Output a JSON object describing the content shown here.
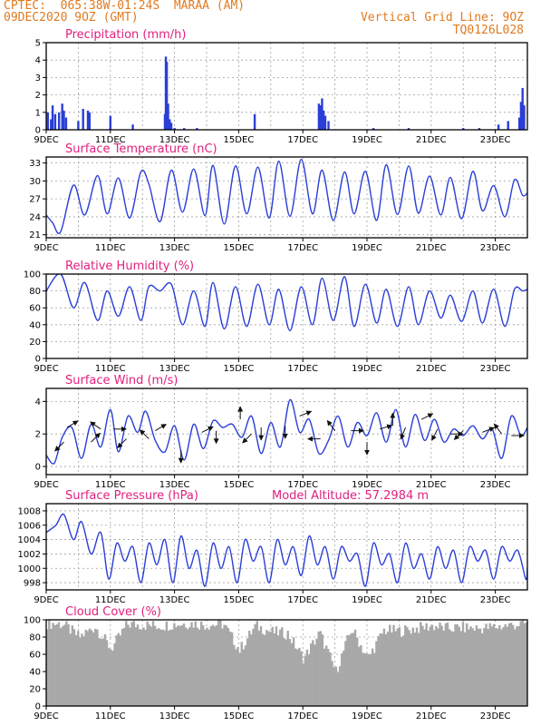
{
  "header": {
    "source": "CPTEC:  065:38W-01:24S  MARAA (AM)",
    "run": "09DEC2020 9OZ (GMT)",
    "grid_line": "Vertical Grid Line: 9OZ",
    "code": "TQ0126L028"
  },
  "colors": {
    "series": "#2b3fd6",
    "title": "#e0207e",
    "cloud": "#a8a8a8",
    "axis": "#000000",
    "grid": "#a0a0a0",
    "arrow": "#111111"
  },
  "chart_data": [
    {
      "type": "bar",
      "title": "Precipitation (mm/h)",
      "xlabel": "",
      "ylabel": "",
      "x_ticks": [
        "9DEC",
        "11DEC",
        "13DEC",
        "15DEC",
        "17DEC",
        "19DEC",
        "21DEC",
        "23DEC"
      ],
      "xlim": [
        9.0,
        24.0
      ],
      "ylim": [
        0,
        5
      ],
      "y_ticks": [
        0,
        1,
        2,
        3,
        4,
        5
      ],
      "grid": true,
      "x": [
        9.05,
        9.15,
        9.2,
        9.28,
        9.4,
        9.5,
        9.55,
        9.62,
        10.0,
        10.15,
        10.3,
        10.35,
        11.0,
        11.7,
        12.7,
        12.73,
        12.76,
        12.8,
        12.85,
        12.9,
        13.0,
        13.3,
        13.7,
        15.5,
        17.5,
        17.55,
        17.6,
        17.65,
        17.7,
        17.8,
        19.2,
        20.3,
        22.0,
        22.5,
        23.1,
        23.4,
        23.75,
        23.8,
        23.85,
        23.9
      ],
      "values": [
        1.0,
        0.6,
        1.4,
        0.9,
        1.0,
        1.5,
        1.1,
        0.7,
        0.5,
        1.2,
        1.1,
        1.0,
        0.8,
        0.3,
        0.9,
        4.2,
        3.9,
        1.5,
        0.6,
        0.4,
        0.1,
        0.1,
        0.1,
        0.9,
        1.5,
        1.4,
        1.8,
        1.1,
        0.8,
        0.5,
        0.1,
        0.1,
        0.1,
        0.1,
        0.3,
        0.5,
        0.7,
        1.6,
        2.4,
        1.4
      ]
    },
    {
      "type": "line",
      "title": "Surface Temperature (nC)",
      "xlabel": "",
      "ylabel": "",
      "x_ticks": [
        "9DEC",
        "11DEC",
        "13DEC",
        "15DEC",
        "17DEC",
        "19DEC",
        "21DEC",
        "23DEC"
      ],
      "xlim": [
        9.0,
        24.0
      ],
      "ylim": [
        20.5,
        34
      ],
      "y_ticks": [
        21,
        24,
        27,
        30,
        33
      ],
      "grid": true,
      "x": [
        9.0,
        9.2,
        9.45,
        9.85,
        10.2,
        10.6,
        10.9,
        11.25,
        11.6,
        11.95,
        12.2,
        12.55,
        12.9,
        13.25,
        13.6,
        13.95,
        14.2,
        14.55,
        14.9,
        15.25,
        15.6,
        15.95,
        16.25,
        16.6,
        16.95,
        17.3,
        17.6,
        17.95,
        18.3,
        18.6,
        18.95,
        19.3,
        19.6,
        19.95,
        20.3,
        20.6,
        20.95,
        21.3,
        21.6,
        21.95,
        22.3,
        22.6,
        22.95,
        23.3,
        23.6,
        23.85,
        24.0
      ],
      "values": [
        24.3,
        23.0,
        21.5,
        29.3,
        24.3,
        30.9,
        24.5,
        30.5,
        23.8,
        31.5,
        29.5,
        23.2,
        31.8,
        24.8,
        32.0,
        24.2,
        32.6,
        22.8,
        32.5,
        24.5,
        32.3,
        23.8,
        33.3,
        24.1,
        33.6,
        24.5,
        31.8,
        23.4,
        31.5,
        24.5,
        31.6,
        23.4,
        32.7,
        24.4,
        32.5,
        24.6,
        30.8,
        24.3,
        30.6,
        23.7,
        31.6,
        25.0,
        29.2,
        24.0,
        30.2,
        27.6,
        28.0
      ]
    },
    {
      "type": "line",
      "title": "Relative Humidity (%)",
      "xlabel": "",
      "ylabel": "",
      "x_ticks": [
        "9DEC",
        "11DEC",
        "13DEC",
        "15DEC",
        "17DEC",
        "19DEC",
        "21DEC",
        "23DEC"
      ],
      "xlim": [
        9.0,
        24.0
      ],
      "ylim": [
        0,
        100
      ],
      "y_ticks": [
        0,
        20,
        40,
        60,
        80,
        100
      ],
      "grid": true,
      "x": [
        9.0,
        9.45,
        9.85,
        10.2,
        10.6,
        10.9,
        11.25,
        11.6,
        11.95,
        12.2,
        12.55,
        12.9,
        13.25,
        13.6,
        13.95,
        14.2,
        14.55,
        14.9,
        15.25,
        15.6,
        15.95,
        16.25,
        16.6,
        16.95,
        17.3,
        17.6,
        17.95,
        18.3,
        18.6,
        18.95,
        19.3,
        19.6,
        19.95,
        20.3,
        20.6,
        20.95,
        21.3,
        21.6,
        21.95,
        22.3,
        22.6,
        22.95,
        23.3,
        23.6,
        23.85,
        24.0
      ],
      "values": [
        80,
        100,
        60,
        90,
        45,
        80,
        50,
        85,
        45,
        85,
        80,
        88,
        40,
        80,
        38,
        90,
        35,
        85,
        38,
        88,
        40,
        82,
        33,
        85,
        40,
        95,
        45,
        97,
        38,
        88,
        42,
        82,
        38,
        85,
        40,
        80,
        48,
        75,
        44,
        80,
        42,
        82,
        38,
        82,
        80,
        82
      ]
    },
    {
      "type": "line",
      "title": "Surface Wind (m/s)",
      "xlabel": "",
      "ylabel": "",
      "x_ticks": [
        "9DEC",
        "11DEC",
        "13DEC",
        "15DEC",
        "17DEC",
        "19DEC",
        "21DEC",
        "23DEC"
      ],
      "xlim": [
        9.0,
        24.0
      ],
      "ylim": [
        -0.5,
        4.8
      ],
      "y_ticks": [
        0,
        2,
        4
      ],
      "grid": true,
      "x": [
        9.0,
        9.25,
        9.5,
        9.8,
        10.1,
        10.4,
        10.7,
        11.0,
        11.25,
        11.55,
        11.85,
        12.1,
        12.4,
        12.7,
        13.0,
        13.3,
        13.6,
        13.9,
        14.2,
        14.5,
        14.8,
        15.1,
        15.4,
        15.7,
        16.0,
        16.3,
        16.6,
        16.9,
        17.2,
        17.5,
        17.8,
        18.1,
        18.4,
        18.7,
        19.0,
        19.3,
        19.6,
        19.9,
        20.2,
        20.5,
        20.8,
        21.1,
        21.4,
        21.7,
        22.0,
        22.3,
        22.6,
        22.9,
        23.2,
        23.5,
        23.8,
        24.0
      ],
      "values": [
        0.7,
        0.2,
        1.8,
        2.4,
        0.5,
        2.6,
        1.2,
        3.5,
        0.9,
        3.1,
        2.1,
        3.4,
        1.6,
        0.9,
        2.5,
        0.4,
        2.6,
        1.1,
        2.8,
        2.4,
        2.6,
        1.8,
        3.1,
        0.8,
        2.7,
        1.2,
        4.1,
        2.1,
        2.9,
        0.8,
        1.6,
        3.1,
        1.2,
        2.7,
        1.9,
        3.3,
        1.5,
        3.5,
        1.2,
        3.2,
        1.6,
        2.9,
        1.5,
        2.3,
        1.9,
        2.5,
        1.7,
        2.3,
        0.5,
        3.1,
        1.9,
        2.4
      ],
      "arrows": [
        {
          "x": 9.55,
          "v": 1.5,
          "dx": -1,
          "dy": -1
        },
        {
          "x": 9.65,
          "v": 2.4,
          "dx": 1,
          "dy": 0.6
        },
        {
          "x": 10.4,
          "v": 1.5,
          "dx": 1,
          "dy": 1
        },
        {
          "x": 10.7,
          "v": 2.3,
          "dx": -1,
          "dy": 0.7
        },
        {
          "x": 11.1,
          "v": 2.3,
          "dx": 1,
          "dy": 0
        },
        {
          "x": 11.5,
          "v": 1.7,
          "dx": -1,
          "dy": -1
        },
        {
          "x": 12.2,
          "v": 1.7,
          "dx": -1,
          "dy": 1
        },
        {
          "x": 12.4,
          "v": 2.2,
          "dx": 1,
          "dy": 0.6
        },
        {
          "x": 13.2,
          "v": 1.0,
          "dx": 0,
          "dy": -1
        },
        {
          "x": 13.85,
          "v": 2.1,
          "dx": 1,
          "dy": 0.5
        },
        {
          "x": 14.3,
          "v": 2.2,
          "dx": 0,
          "dy": -1
        },
        {
          "x": 15.05,
          "v": 2.9,
          "dx": 0,
          "dy": 1
        },
        {
          "x": 15.4,
          "v": 2.0,
          "dx": -1,
          "dy": -1
        },
        {
          "x": 15.7,
          "v": 2.4,
          "dx": 0,
          "dy": -1
        },
        {
          "x": 16.45,
          "v": 2.5,
          "dx": 0,
          "dy": -1
        },
        {
          "x": 16.9,
          "v": 3.1,
          "dx": 1,
          "dy": 0.4
        },
        {
          "x": 17.55,
          "v": 1.7,
          "dx": -1,
          "dy": 0
        },
        {
          "x": 18.0,
          "v": 2.2,
          "dx": -0.6,
          "dy": 0.8
        },
        {
          "x": 18.5,
          "v": 2.2,
          "dx": 1,
          "dy": 0
        },
        {
          "x": 19.0,
          "v": 1.5,
          "dx": 0,
          "dy": -1
        },
        {
          "x": 19.4,
          "v": 2.3,
          "dx": 1,
          "dy": 0.3
        },
        {
          "x": 19.8,
          "v": 2.5,
          "dx": 0,
          "dy": 1
        },
        {
          "x": 20.2,
          "v": 2.4,
          "dx": -0.4,
          "dy": -1
        },
        {
          "x": 20.7,
          "v": 2.9,
          "dx": 1,
          "dy": 0.5
        },
        {
          "x": 21.2,
          "v": 2.3,
          "dx": -0.5,
          "dy": -1
        },
        {
          "x": 21.6,
          "v": 2.0,
          "dx": 1,
          "dy": 0
        },
        {
          "x": 22.0,
          "v": 2.2,
          "dx": -1,
          "dy": -1
        },
        {
          "x": 22.6,
          "v": 2.1,
          "dx": 1,
          "dy": 0.4
        },
        {
          "x": 23.2,
          "v": 2.0,
          "dx": -0.6,
          "dy": 0.8
        },
        {
          "x": 23.5,
          "v": 1.9,
          "dx": 1,
          "dy": 0
        }
      ]
    },
    {
      "type": "line",
      "title": "Surface Pressure (hPa)",
      "annotation": "Model Altitude: 57.2984 m",
      "xlabel": "",
      "ylabel": "",
      "x_ticks": [
        "9DEC",
        "11DEC",
        "13DEC",
        "15DEC",
        "17DEC",
        "19DEC",
        "21DEC",
        "23DEC"
      ],
      "xlim": [
        9.0,
        24.0
      ],
      "ylim": [
        997,
        1009
      ],
      "y_ticks": [
        998,
        1000,
        1002,
        1004,
        1006,
        1008
      ],
      "grid": true,
      "x": [
        9.0,
        9.3,
        9.55,
        9.85,
        10.1,
        10.4,
        10.7,
        10.95,
        11.2,
        11.45,
        11.7,
        11.95,
        12.2,
        12.45,
        12.7,
        12.95,
        13.2,
        13.45,
        13.7,
        13.95,
        14.2,
        14.45,
        14.7,
        14.95,
        15.2,
        15.45,
        15.7,
        15.95,
        16.2,
        16.45,
        16.7,
        16.95,
        17.2,
        17.45,
        17.7,
        17.95,
        18.2,
        18.45,
        18.7,
        18.95,
        19.2,
        19.45,
        19.7,
        19.95,
        20.2,
        20.45,
        20.7,
        20.95,
        21.2,
        21.45,
        21.7,
        21.95,
        22.2,
        22.45,
        22.7,
        22.95,
        23.2,
        23.45,
        23.7,
        23.95,
        24.0
      ],
      "values": [
        1005.0,
        1006.0,
        1007.5,
        1004.0,
        1006.5,
        1002.0,
        1005.0,
        998.5,
        1003.5,
        1001.0,
        1003.0,
        998.0,
        1003.5,
        1000.5,
        1004.0,
        998.0,
        1004.5,
        1000.0,
        1002.5,
        997.5,
        1003.5,
        1000.0,
        1003.0,
        998.0,
        1004.0,
        1001.0,
        1003.0,
        998.0,
        1004.0,
        1000.5,
        1003.0,
        999.0,
        1004.5,
        1000.5,
        1003.0,
        998.5,
        1003.0,
        1001.0,
        1002.0,
        997.5,
        1003.5,
        1000.5,
        1002.0,
        998.0,
        1003.5,
        1000.0,
        1002.0,
        998.5,
        1003.0,
        1000.0,
        1002.5,
        998.0,
        1003.0,
        1001.0,
        1002.5,
        998.5,
        1003.0,
        1001.0,
        1002.5,
        998.5,
        1000.0
      ]
    },
    {
      "type": "bar",
      "title": "Cloud Cover (%)",
      "xlabel": "",
      "ylabel": "",
      "x_ticks": [
        "9DEC",
        "11DEC",
        "13DEC",
        "15DEC",
        "17DEC",
        "19DEC",
        "21DEC",
        "23DEC"
      ],
      "xlim": [
        9.0,
        24.0
      ],
      "ylim": [
        0,
        100
      ],
      "y_ticks": [
        0,
        20,
        40,
        60,
        80,
        100
      ],
      "grid": true,
      "x": [
        9.0,
        9.5,
        10.0,
        10.5,
        11.0,
        11.5,
        12.0,
        12.5,
        13.0,
        13.5,
        14.0,
        14.5,
        15.0,
        15.5,
        16.0,
        16.5,
        17.0,
        17.5,
        18.0,
        18.5,
        19.0,
        19.5,
        20.0,
        20.5,
        21.0,
        21.5,
        22.0,
        22.5,
        23.0,
        23.5,
        24.0
      ],
      "values": [
        96,
        95,
        80,
        92,
        66,
        95,
        94,
        93,
        95,
        96,
        94,
        95,
        65,
        93,
        86,
        84,
        55,
        85,
        40,
        90,
        55,
        88,
        87,
        90,
        93,
        90,
        91,
        90,
        92,
        94,
        96
      ],
      "bar_step": 0.06
    }
  ]
}
